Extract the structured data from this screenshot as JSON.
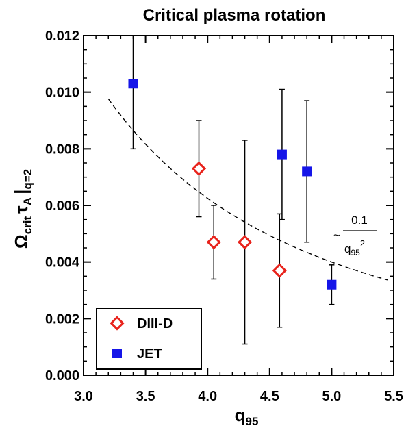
{
  "chart_data": {
    "type": "scatter",
    "title": "Critical plasma rotation",
    "xlabel": {
      "main": "q",
      "sub": "95"
    },
    "ylabel": {
      "omega": "Ω",
      "omega_sub": "crit",
      "tau": "τ",
      "tau_sub": "A",
      "bar": "|",
      "cond_sub": "q=2"
    },
    "xlim": [
      3.0,
      5.5
    ],
    "ylim": [
      0.0,
      0.012
    ],
    "xticks": [
      3.0,
      3.5,
      4.0,
      4.5,
      5.0,
      5.5
    ],
    "xtick_labels": [
      "3.0",
      "3.5",
      "4.0",
      "4.5",
      "5.0",
      "5.5"
    ],
    "yticks": [
      0.0,
      0.002,
      0.004,
      0.006,
      0.008,
      0.01,
      0.012
    ],
    "ytick_labels": [
      "0.000",
      "0.002",
      "0.004",
      "0.006",
      "0.008",
      "0.010",
      "0.012"
    ],
    "grid": false,
    "legend_placement": "bottom-left",
    "series": [
      {
        "name": "DIII-D",
        "marker": "open-diamond",
        "color": "#e8231c",
        "points": [
          {
            "x": 3.93,
            "y": 0.0073,
            "err_low": 0.0056,
            "err_high": 0.009
          },
          {
            "x": 4.05,
            "y": 0.0047,
            "err_low": 0.0034,
            "err_high": 0.006
          },
          {
            "x": 4.3,
            "y": 0.0047,
            "err_low": 0.0011,
            "err_high": 0.0083
          },
          {
            "x": 4.58,
            "y": 0.0037,
            "err_low": 0.0017,
            "err_high": 0.0057
          }
        ]
      },
      {
        "name": "JET",
        "marker": "filled-square",
        "color": "#1515e8",
        "points": [
          {
            "x": 3.4,
            "y": 0.0103,
            "err_low": 0.008,
            "err_high": 0.012
          },
          {
            "x": 4.6,
            "y": 0.0078,
            "err_low": 0.0055,
            "err_high": 0.0101
          },
          {
            "x": 4.8,
            "y": 0.0072,
            "err_low": 0.0047,
            "err_high": 0.0097
          },
          {
            "x": 5.0,
            "y": 0.0032,
            "err_low": 0.0025,
            "err_high": 0.0039
          }
        ]
      }
    ],
    "fit_curve": {
      "style": "dashed",
      "formula": "0.1 / q95^2",
      "x_range": [
        3.2,
        5.45
      ],
      "annotation": {
        "tilde": "~",
        "numerator": "0.1",
        "denominator": "q",
        "denominator_sub": "95",
        "denominator_exp": "2"
      }
    }
  }
}
